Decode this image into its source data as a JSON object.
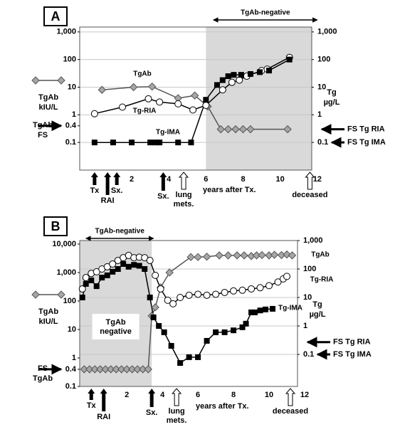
{
  "chart_data": [
    {
      "type": "line",
      "panel": "A",
      "log_scale": true,
      "grid": true,
      "banner": "TgAb-negative",
      "banner_range": [
        6.4,
        12
      ],
      "shaded_range": [
        6,
        11.7
      ],
      "x_label": "years after Tx.",
      "y_label": "TgAb kIU/L",
      "y2_label": "Tg µg/L",
      "fs_tgab_label": "TgAb FS",
      "fs_tg_ria_label": "FS Tg RIA",
      "fs_tg_ria": 0.3,
      "fs_tg_ima_label": "FS Tg IMA",
      "xlim": [
        -0.8,
        11.7
      ],
      "xticks": [
        2,
        4,
        6,
        8,
        10,
        12
      ],
      "ylim": [
        0.01,
        1500
      ],
      "yticks": [
        {
          "value": 1000,
          "label": "1,000"
        },
        100,
        10,
        1,
        0.4,
        0.1
      ],
      "y2lim": [
        0.01,
        1500
      ],
      "y2ticks": [
        {
          "value": 1000,
          "label": "1,000"
        },
        100,
        10,
        1,
        0.1
      ],
      "events": [
        {
          "label": "Tx",
          "x": 0,
          "open": false
        },
        {
          "label": "RAI",
          "x": 0.7,
          "open": false
        },
        {
          "label": "Sx.",
          "x": 1.2,
          "open": false
        },
        {
          "label": "Sx.",
          "x": 3.7,
          "open": false
        },
        {
          "label": "lung mets.",
          "x": 4.8,
          "open": true
        },
        {
          "label": "deceased",
          "x": 11.6,
          "open": true
        }
      ],
      "series": [
        {
          "name": "TgAb",
          "axis": "y",
          "marker": "diamond",
          "color": "#a6a6a6",
          "line": "#555555",
          "x": [
            0.4,
            2.1,
            3.1,
            4.5,
            5.4,
            6.1,
            6.8,
            7.2,
            7.6,
            8.0,
            8.4,
            10.4
          ],
          "values": [
            8,
            10,
            10.5,
            4,
            5,
            2,
            0.3,
            0.3,
            0.3,
            0.3,
            0.3,
            0.3
          ]
        },
        {
          "name": "Tg-RIA",
          "axis": "y2",
          "marker": "circle",
          "color": "#ffffff",
          "line": "#000000",
          "x": [
            0.0,
            1.5,
            2.9,
            3.5,
            4.5,
            5.3,
            6.0,
            6.9,
            7.4,
            7.8,
            8.2,
            9.0,
            9.3,
            10.5
          ],
          "values": [
            1.1,
            1.9,
            3.8,
            2.9,
            2.5,
            1.5,
            2.2,
            8,
            15,
            18,
            25,
            40,
            45,
            120
          ]
        },
        {
          "name": "Tg-IMA",
          "axis": "y2",
          "marker": "square",
          "color": "#000000",
          "line": "#000000",
          "x": [
            0.0,
            1.0,
            2.0,
            3.0,
            3.3,
            3.5,
            4.5,
            5.2,
            6.0,
            6.6,
            6.9,
            7.2,
            7.5,
            7.9,
            8.4,
            8.9,
            9.4,
            10.5
          ],
          "values": [
            0.1,
            0.1,
            0.1,
            0.1,
            0.1,
            0.1,
            0.1,
            0.1,
            3.5,
            12,
            18,
            25,
            28,
            28,
            30,
            35,
            40,
            100
          ]
        }
      ]
    },
    {
      "type": "line",
      "panel": "B",
      "log_scale": true,
      "grid": true,
      "banner": "TgAb-negative",
      "banner_range": [
        -0.3,
        3.5
      ],
      "shaded_range": [
        -0.65,
        3.4
      ],
      "shade_label": "TgAb negative",
      "x_label": "years after Tx.",
      "y_label": "TgAb kIU/L",
      "y2_label": "Tg µg/L",
      "fs_tgab_label": "FS TgAb",
      "fs_tg_ria_label": "FS Tg RIA",
      "fs_tg_ria": 0.27,
      "fs_tg_ima_label": "FS Tg IMA",
      "xlim": [
        -0.65,
        11.6
      ],
      "xticks": [
        2,
        4,
        6,
        8,
        10,
        12
      ],
      "ylim": [
        0.1,
        13300
      ],
      "yticks": [
        {
          "value": 10000,
          "label": "10,000"
        },
        {
          "value": 1000,
          "label": "1,000"
        },
        100,
        10,
        1,
        0.4,
        0.1
      ],
      "y2lim": [
        0.0075,
        1000
      ],
      "y2ticks": [
        {
          "value": 1000,
          "label": "1,000"
        },
        100,
        10,
        1,
        0.1
      ],
      "events": [
        {
          "label": "Tx",
          "x": 0,
          "open": false
        },
        {
          "label": "RAI",
          "x": 0.7,
          "open": false
        },
        {
          "label": "Sx.",
          "x": 3.4,
          "open": false
        },
        {
          "label": "lung mets.",
          "x": 4.8,
          "open": true
        },
        {
          "label": "deceased",
          "x": 11.2,
          "open": true
        }
      ],
      "series": [
        {
          "name": "TgAb",
          "axis": "y",
          "marker": "diamond",
          "color": "#a6a6a6",
          "line": "#555555",
          "x": [
            -0.4,
            -0.1,
            0.2,
            0.5,
            0.8,
            1.1,
            1.4,
            1.7,
            2.0,
            2.3,
            2.6,
            2.9,
            3.2,
            3.4,
            3.6,
            3.9,
            4.4,
            5.6,
            6.0,
            6.5,
            7.2,
            7.7,
            8.2,
            8.6,
            9.0,
            9.3,
            9.6,
            10.0,
            10.3,
            10.7,
            11.0,
            11.3
          ],
          "values": [
            0.4,
            0.4,
            0.4,
            0.4,
            0.4,
            0.4,
            0.4,
            0.4,
            0.4,
            0.4,
            0.4,
            0.4,
            0.4,
            30,
            60,
            300,
            1000,
            3500,
            3500,
            3600,
            4000,
            4000,
            4000,
            4000,
            3800,
            4000,
            4100,
            4000,
            4200,
            4100,
            4300,
            4000
          ]
        },
        {
          "name": "Tg-RIA",
          "axis": "y2",
          "marker": "circle",
          "color": "#ffffff",
          "line": "#000000",
          "x": [
            -0.5,
            -0.3,
            0.0,
            0.3,
            0.6,
            0.9,
            1.2,
            1.5,
            1.8,
            2.1,
            2.4,
            2.7,
            3.0,
            3.3,
            3.6,
            3.9,
            4.3,
            4.6,
            5.0,
            5.5,
            6.0,
            6.5,
            7.0,
            7.5,
            8.0,
            8.5,
            9.0,
            9.5,
            10.0,
            10.5,
            10.8,
            11.0
          ],
          "values": [
            20,
            50,
            70,
            80,
            100,
            120,
            150,
            200,
            250,
            300,
            250,
            260,
            250,
            200,
            60,
            20,
            8,
            6,
            10,
            12,
            13,
            12,
            13,
            15,
            17,
            18,
            20,
            22,
            26,
            35,
            45,
            55
          ]
        },
        {
          "name": "Tg-IMA",
          "axis": "y2",
          "marker": "square",
          "color": "#000000",
          "line": "#000000",
          "x": [
            -0.5,
            -0.3,
            0.0,
            0.3,
            0.6,
            0.9,
            1.2,
            1.5,
            1.8,
            2.1,
            2.4,
            2.7,
            3.0,
            3.3,
            3.5,
            3.8,
            4.1,
            4.5,
            5.0,
            5.5,
            6.0,
            6.5,
            7.0,
            7.5,
            8.0,
            8.5,
            8.7,
            9.0,
            9.2,
            9.5,
            9.8,
            10.2
          ],
          "values": [
            10,
            30,
            40,
            25,
            50,
            60,
            80,
            100,
            150,
            120,
            140,
            130,
            100,
            10,
            2,
            1,
            0.6,
            0.2,
            0.05,
            0.08,
            0.08,
            0.3,
            0.6,
            0.6,
            0.7,
            0.9,
            1.2,
            3,
            3,
            3.5,
            3.8,
            4
          ]
        }
      ]
    }
  ]
}
